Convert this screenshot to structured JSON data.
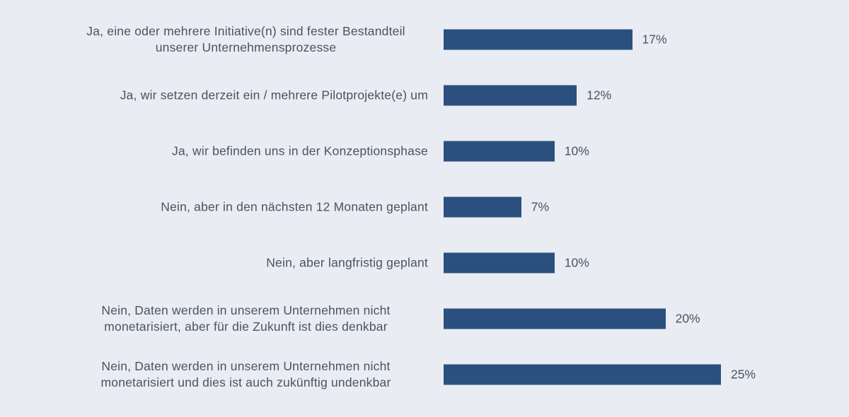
{
  "chart_data": {
    "type": "bar",
    "orientation": "horizontal",
    "categories": [
      "Ja, eine oder mehrere Initiative(n) sind fester Bestandteil unserer Unternehmensprozesse",
      "Ja, wir setzen derzeit ein / mehrere Pilotprojekte(e) um",
      "Ja, wir befinden uns in der Konzeptionsphase",
      "Nein, aber in den nächsten 12 Monaten geplant",
      "Nein, aber langfristig geplant",
      "Nein, Daten werden in unserem Unternehmen nicht monetarisiert, aber für die Zukunft ist dies denkbar",
      "Nein, Daten werden in unserem Unternehmen nicht monetarisiert und dies ist auch zukünftig undenkbar"
    ],
    "values": [
      17,
      12,
      10,
      7,
      10,
      20,
      25
    ],
    "value_labels": [
      "17%",
      "12%",
      "10%",
      "7%",
      "10%",
      "20%",
      "25%"
    ],
    "color": "#2b5080"
  }
}
